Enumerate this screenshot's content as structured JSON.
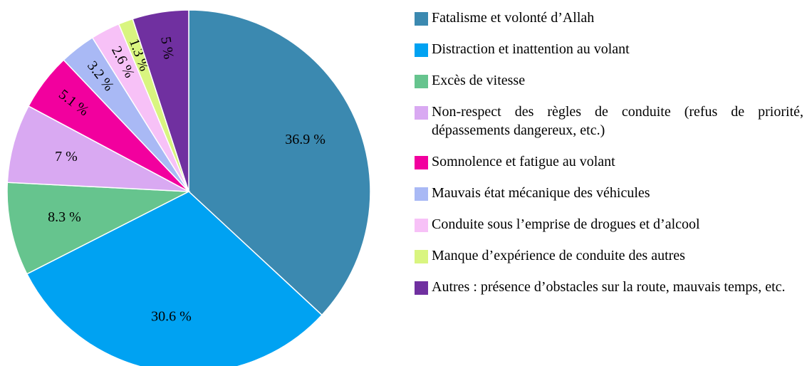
{
  "chart_data": {
    "type": "pie",
    "categories": [
      "Fatalisme et volonté d’Allah",
      "Distraction et inattention au volant",
      "Excès de vitesse",
      "Non-respect des règles de conduite (refus de priorité, dépassements dangereux, etc.)",
      "Somnolence et fatigue au volant",
      "Mauvais état mécanique des véhicules",
      "Conduite sous l’emprise de drogues et d’alcool",
      "Manque d’expérience de conduite des autres",
      "Autres : présence d’obstacles sur la route, mauvais temps, etc."
    ],
    "values": [
      36.9,
      30.6,
      8.3,
      7,
      5.1,
      3.2,
      2.6,
      1.3,
      5
    ],
    "value_labels": [
      "36.9 %",
      "30.6 %",
      "8.3 %",
      "7 %",
      "5.1 %",
      "3.2 %",
      "2.6 %",
      "1.3 %",
      "5 %"
    ],
    "colors": [
      "#3b89b0",
      "#00a2f2",
      "#66c48e",
      "#d9a9f2",
      "#f2009e",
      "#a9b9f5",
      "#f7c1f7",
      "#d9f580",
      "#7030a0"
    ]
  }
}
